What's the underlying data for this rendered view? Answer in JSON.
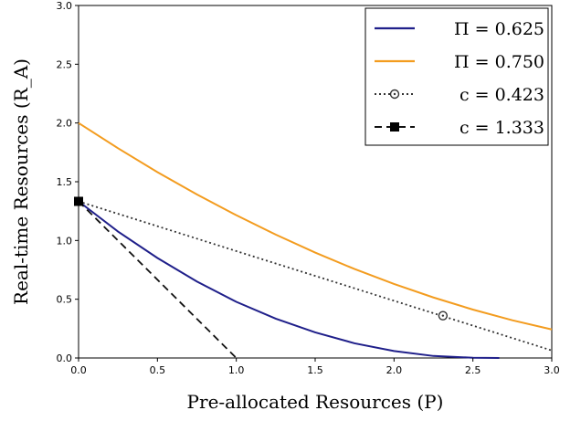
{
  "chart_data": {
    "type": "line",
    "title": "",
    "xlabel": "Pre-allocated Resources (P)",
    "ylabel": "Real-time Resources (R_A)",
    "xlim": [
      0,
      3
    ],
    "ylim": [
      0,
      3
    ],
    "x_ticks": [
      "0.0",
      "0.5",
      "1.0",
      "1.5",
      "2.0",
      "2.5",
      "3.0"
    ],
    "y_ticks": [
      "0.0",
      "0.5",
      "1.0",
      "1.5",
      "2.0",
      "2.5",
      "3.0"
    ],
    "grid": false,
    "legend_position": "top-right",
    "series": [
      {
        "name": "Π = 0.625",
        "style": "solid",
        "color": "#1f1f8a",
        "points": [
          [
            0,
            1.333
          ],
          [
            0.25,
            1.076
          ],
          [
            0.5,
            0.851
          ],
          [
            0.75,
            0.651
          ],
          [
            1.0,
            0.478
          ],
          [
            1.25,
            0.335
          ],
          [
            1.5,
            0.218
          ],
          [
            1.75,
            0.125
          ],
          [
            2.0,
            0.059
          ],
          [
            2.25,
            0.017
          ],
          [
            2.5,
            0.002
          ],
          [
            2.667,
            0.0
          ]
        ]
      },
      {
        "name": "Π = 0.750",
        "style": "solid",
        "color": "#f39c1f",
        "points": [
          [
            0,
            2.0
          ],
          [
            0.25,
            1.785
          ],
          [
            0.5,
            1.582
          ],
          [
            0.75,
            1.392
          ],
          [
            1.0,
            1.215
          ],
          [
            1.25,
            1.05
          ],
          [
            1.5,
            0.897
          ],
          [
            1.75,
            0.757
          ],
          [
            2.0,
            0.63
          ],
          [
            2.25,
            0.515
          ],
          [
            2.5,
            0.412
          ],
          [
            2.75,
            0.321
          ],
          [
            3.0,
            0.243
          ]
        ]
      },
      {
        "name": "c = 0.423",
        "style": "dotted",
        "color": "#333333",
        "marker": "open-circle",
        "marker_point": [
          2.31,
          0.36
        ],
        "points": [
          [
            0,
            1.333
          ],
          [
            3.0,
            0.064
          ]
        ]
      },
      {
        "name": "c = 1.333",
        "style": "dashed",
        "color": "#111111",
        "marker": "filled-square",
        "marker_point": [
          0,
          1.333
        ],
        "points": [
          [
            0,
            1.333
          ],
          [
            1.0,
            0.0
          ]
        ]
      }
    ]
  },
  "colors": {
    "axis": "#000000",
    "pi_0625": "#1f1f8a",
    "pi_0750": "#f39c1f"
  }
}
